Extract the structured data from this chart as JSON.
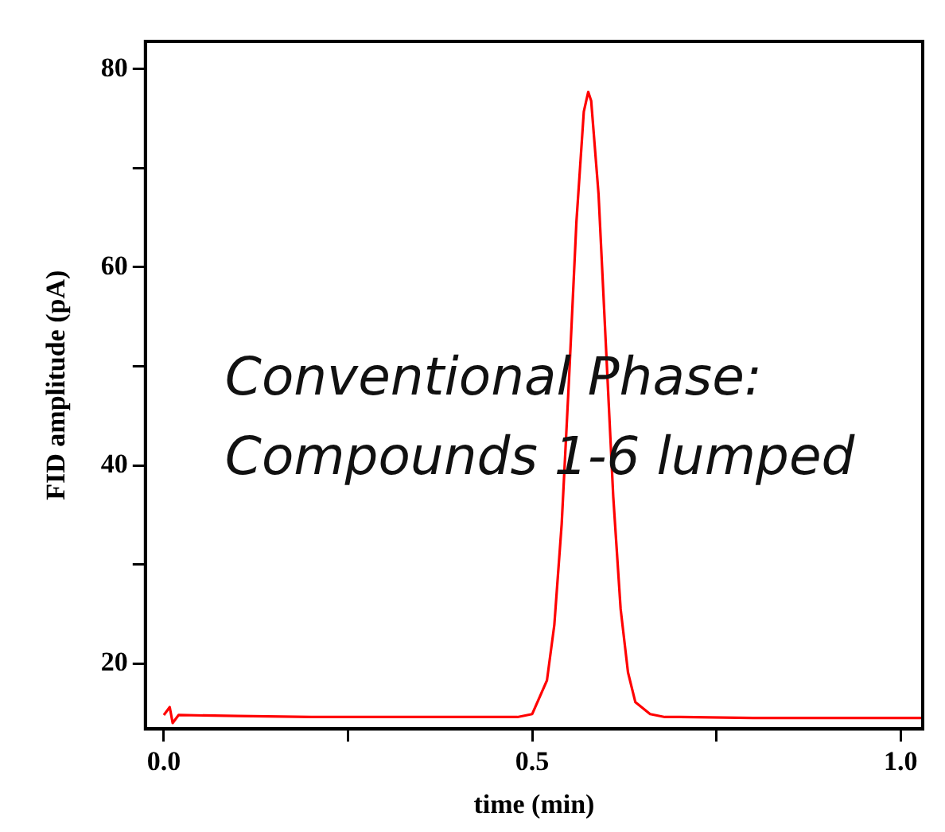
{
  "chart_data": {
    "type": "line",
    "xlabel": "time (min)",
    "ylabel": "FID amplitude (pA)",
    "annotations": [
      "Conventional Phase:\nCompounds 1-6 lumped"
    ],
    "x": [
      0,
      0.008,
      0.012,
      0.02,
      0.1,
      0.2,
      0.3,
      0.4,
      0.48,
      0.5,
      0.52,
      0.53,
      0.54,
      0.55,
      0.56,
      0.57,
      0.576,
      0.58,
      0.59,
      0.6,
      0.61,
      0.62,
      0.63,
      0.64,
      0.66,
      0.68,
      0.7,
      0.8,
      0.9,
      1.0,
      1.03
    ],
    "series": [
      {
        "color": "#ff0000",
        "values": [
          14.8,
          15.6,
          14.0,
          14.8,
          14.7,
          14.6,
          14.6,
          14.6,
          14.6,
          14.9,
          18.3,
          23.9,
          34.1,
          48.8,
          64.6,
          75.7,
          77.7,
          76.8,
          67.4,
          52.1,
          36.8,
          25.5,
          19.1,
          16.1,
          14.9,
          14.6,
          14.6,
          14.5,
          14.5,
          14.5,
          14.5
        ]
      }
    ],
    "xlim": [
      -0.025,
      1.03
    ],
    "ylim": [
      13.4,
      82.8
    ],
    "xticks": [
      {
        "value": 0,
        "label": "0.0"
      },
      {
        "value": 0.25,
        "label": null
      },
      0.5,
      {
        "value": 0.75,
        "label": null
      },
      {
        "value": 1,
        "label": "1.0"
      }
    ],
    "yticks": [
      20,
      {
        "value": 30,
        "label": null
      },
      40,
      {
        "value": 50,
        "label": null
      },
      60,
      {
        "value": 70,
        "label": null
      },
      80
    ],
    "grid": false,
    "legend": false,
    "marker": "none",
    "line_style": "solid"
  }
}
